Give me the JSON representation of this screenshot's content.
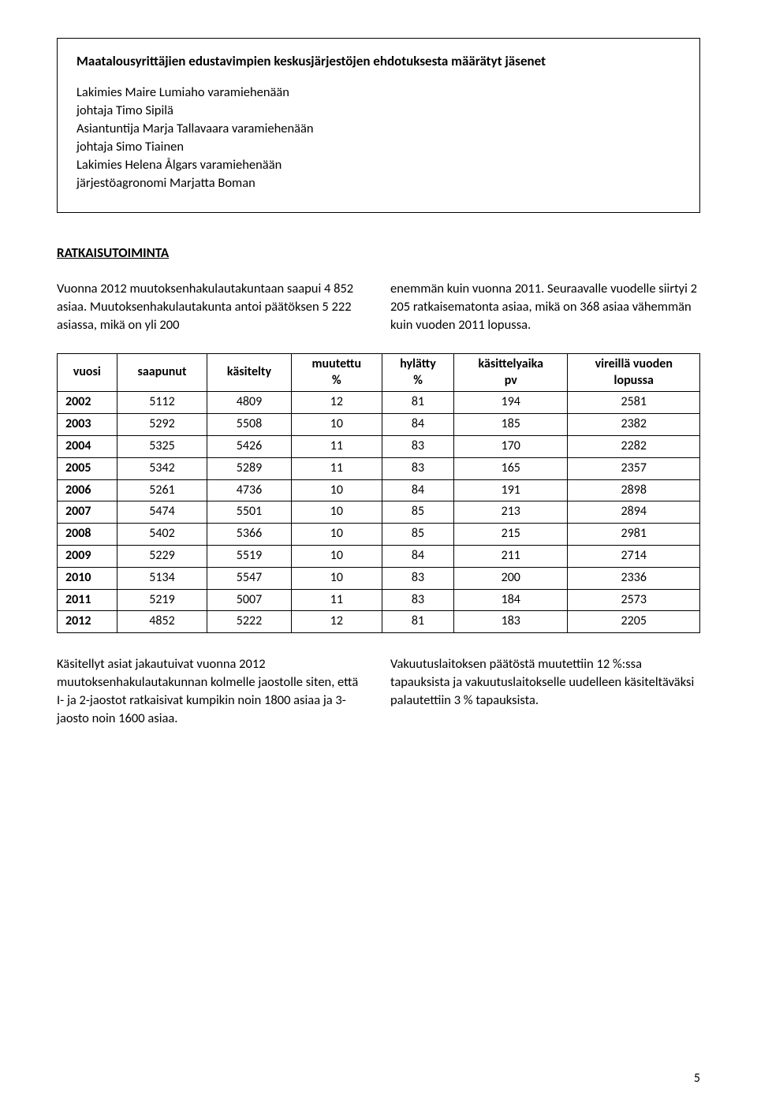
{
  "box": {
    "title": "Maatalousyrittäjien edustavimpien keskusjärjestöjen ehdotuksesta määrätyt jäsenet",
    "lines": [
      "Lakimies Maire Lumiaho varamiehenään",
      "johtaja Timo Sipilä",
      "Asiantuntija Marja Tallavaara varamiehenään",
      "johtaja Simo Tiainen",
      "Lakimies Helena Ålgars varamiehenään",
      "järjestöagronomi Marjatta Boman"
    ]
  },
  "section_heading": "RATKAISUTOIMINTA",
  "intro_left": "Vuonna 2012 muutoksenhakulautakuntaan saapui 4 852 asiaa. Muutoksenhakulautakunta antoi päätöksen 5 222 asiassa, mikä on yli 200",
  "intro_right": "enemmän kuin vuonna 2011. Seuraavalle vuodelle siirtyi 2 205 ratkaisematonta asiaa, mikä on 368 asiaa vähemmän kuin vuoden 2011 lopussa.",
  "table": {
    "columns": [
      {
        "l1": "vuosi",
        "l2": ""
      },
      {
        "l1": "saapunut",
        "l2": ""
      },
      {
        "l1": "käsitelty",
        "l2": ""
      },
      {
        "l1": "muutettu",
        "l2": "%"
      },
      {
        "l1": "hylätty",
        "l2": "%"
      },
      {
        "l1": "käsittelyaika",
        "l2": "pv"
      },
      {
        "l1": "vireillä vuoden",
        "l2": "lopussa"
      }
    ],
    "rows": [
      [
        "2002",
        "5112",
        "4809",
        "12",
        "81",
        "194",
        "2581"
      ],
      [
        "2003",
        "5292",
        "5508",
        "10",
        "84",
        "185",
        "2382"
      ],
      [
        "2004",
        "5325",
        "5426",
        "11",
        "83",
        "170",
        "2282"
      ],
      [
        "2005",
        "5342",
        "5289",
        "11",
        "83",
        "165",
        "2357"
      ],
      [
        "2006",
        "5261",
        "4736",
        "10",
        "84",
        "191",
        "2898"
      ],
      [
        "2007",
        "5474",
        "5501",
        "10",
        "85",
        "213",
        "2894"
      ],
      [
        "2008",
        "5402",
        "5366",
        "10",
        "85",
        "215",
        "2981"
      ],
      [
        "2009",
        "5229",
        "5519",
        "10",
        "84",
        "211",
        "2714"
      ],
      [
        "2010",
        "5134",
        "5547",
        "10",
        "83",
        "200",
        "2336"
      ],
      [
        "2011",
        "5219",
        "5007",
        "11",
        "83",
        "184",
        "2573"
      ],
      [
        "2012",
        "4852",
        "5222",
        "12",
        "81",
        "183",
        "2205"
      ]
    ]
  },
  "outro_left": "Käsitellyt asiat jakautuivat vuonna 2012 muutoksenhakulautakunnan kolmelle jaostolle siten, että I- ja 2-jaostot ratkaisivat kumpikin noin 1800 asiaa ja 3-jaosto noin 1600 asiaa.",
  "outro_right": "Vakuutuslaitoksen päätöstä muutettiin 12 %:ssa tapauksista ja vakuutuslaitokselle uudelleen käsiteltäväksi palautettiin 3 % tapauksista.",
  "page_num": "5",
  "colors": {
    "text": "#000000",
    "background": "#ffffff",
    "border": "#000000"
  }
}
